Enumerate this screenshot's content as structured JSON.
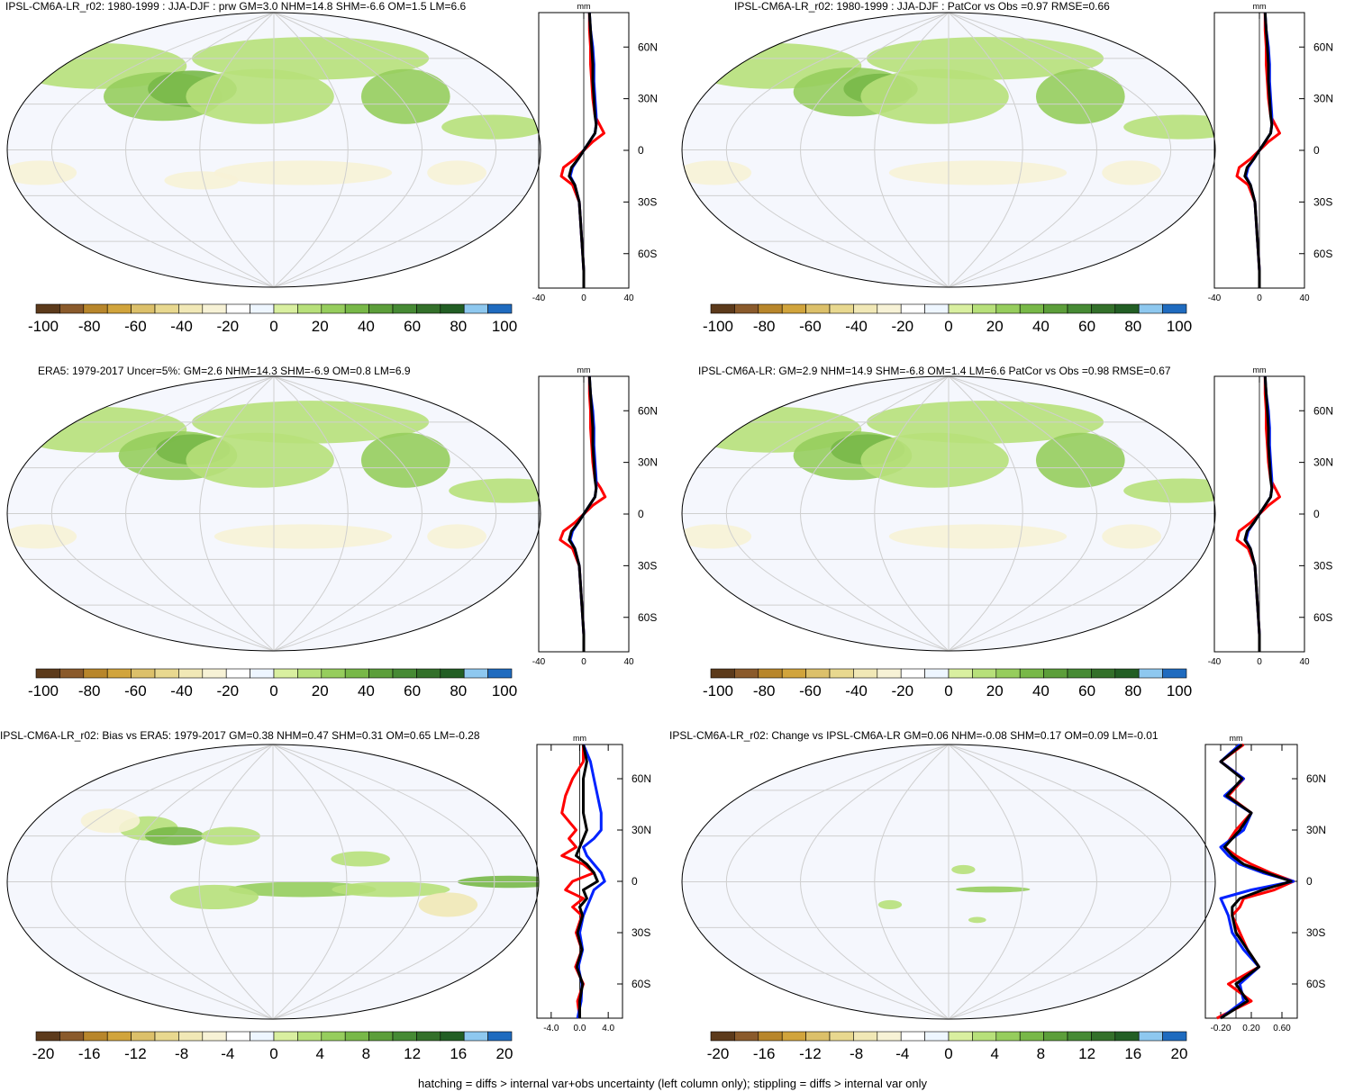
{
  "colors": {
    "land": "none",
    "ocean": "#f5f7fd",
    "graticule": "#cfcfcf",
    "line_red": "#ff0000",
    "line_blue": "#0022ff",
    "line_black": "#000000"
  },
  "colorbar_colors": [
    "#5c3a1b",
    "#8a5a2b",
    "#b8862b",
    "#d1a43c",
    "#dcc06a",
    "#e8d88f",
    "#f1e8b6",
    "#f7f2d6",
    "#ffffff",
    "#eef6ff",
    "#d9efa0",
    "#b7e07a",
    "#96cd5d",
    "#78b848",
    "#5c9e3a",
    "#468a34",
    "#33702a",
    "#225e24",
    "#8ec8ef",
    "#1f6bbf"
  ],
  "panels": [
    {
      "title": "IPSL-CM6A-LR_r02: 1980-1999 : JJA-DJF : prw GM=3.0 NHM=14.8 SHM=-6.6 OM=1.5 LM=6.6",
      "colorbar_labels": [
        "-100",
        "-80",
        "-60",
        "-40",
        "-20",
        "0",
        "20",
        "40",
        "60",
        "80",
        "100"
      ],
      "profile_ticks": [
        "-40",
        "0",
        "40"
      ],
      "profile_unit": "mm",
      "lat_labels": [
        "60N",
        "30N",
        "0",
        "30S",
        "60S"
      ]
    },
    {
      "title": "IPSL-CM6A-LR_r02: 1980-1999 : JJA-DJF : PatCor vs Obs =0.97 RMSE=0.66",
      "colorbar_labels": [
        "-100",
        "-80",
        "-60",
        "-40",
        "-20",
        "0",
        "20",
        "40",
        "60",
        "80",
        "100"
      ],
      "profile_ticks": [
        "-40",
        "0",
        "40"
      ],
      "profile_unit": "mm",
      "lat_labels": [
        "60N",
        "30N",
        "0",
        "30S",
        "60S"
      ]
    },
    {
      "title": "ERA5: 1979-2017 Uncer=5%: GM=2.6 NHM=14.3 SHM=-6.9 OM=0.8 LM=6.9",
      "colorbar_labels": [
        "-100",
        "-80",
        "-60",
        "-40",
        "-20",
        "0",
        "20",
        "40",
        "60",
        "80",
        "100"
      ],
      "profile_ticks": [
        "-40",
        "0",
        "40"
      ],
      "profile_unit": "mm",
      "lat_labels": [
        "60N",
        "30N",
        "0",
        "30S",
        "60S"
      ]
    },
    {
      "title": "IPSL-CM6A-LR: GM=2.9 NHM=14.9 SHM=-6.8 OM=1.4 LM=6.6 PatCor vs Obs =0.98 RMSE=0.67",
      "colorbar_labels": [
        "-100",
        "-80",
        "-60",
        "-40",
        "-20",
        "0",
        "20",
        "40",
        "60",
        "80",
        "100"
      ],
      "profile_ticks": [
        "-40",
        "0",
        "40"
      ],
      "profile_unit": "mm",
      "lat_labels": [
        "60N",
        "30N",
        "0",
        "30S",
        "60S"
      ]
    },
    {
      "title": "IPSL-CM6A-LR_r02: Bias vs ERA5: 1979-2017 GM=0.38 NHM=0.47 SHM=0.31 OM=0.65 LM=-0.28",
      "colorbar_labels": [
        "-20",
        "-16",
        "-12",
        "-8",
        "-4",
        "0",
        "4",
        "8",
        "12",
        "16",
        "20"
      ],
      "profile_ticks": [
        "-4.0",
        "0.0",
        "4.0"
      ],
      "profile_unit": "mm",
      "lat_labels": [
        "60N",
        "30N",
        "0",
        "30S",
        "60S"
      ]
    },
    {
      "title": "IPSL-CM6A-LR_r02: Change vs IPSL-CM6A-LR GM=0.06 NHM=-0.08 SHM=0.17 OM=0.09 LM=-0.01",
      "colorbar_labels": [
        "-20",
        "-16",
        "-12",
        "-8",
        "-4",
        "0",
        "4",
        "8",
        "12",
        "16",
        "20"
      ],
      "profile_ticks": [
        "-0.20",
        "0.20",
        "0.60"
      ],
      "profile_unit": "mm",
      "lat_labels": [
        "60N",
        "30N",
        "0",
        "30S",
        "60S"
      ]
    }
  ],
  "footnote": "hatching = diffs > internal var+obs uncertainty (left column only); stippling = diffs > internal var only",
  "chart_data": [
    {
      "type": "line",
      "title": "IPSL-CM6A-LR_r02: 1980-1999 : JJA-DJF : prw GM=3.0 NHM=14.8 SHM=-6.6 OM=1.5 LM=6.6",
      "xlim": [
        -40,
        40
      ],
      "ylim": [
        -80,
        80
      ],
      "xlabel": "mm",
      "y": [
        -80,
        -70,
        -60,
        -50,
        -40,
        -30,
        -20,
        -15,
        -10,
        -5,
        0,
        5,
        10,
        15,
        20,
        30,
        40,
        50,
        60,
        70,
        80
      ],
      "series": [
        {
          "color": "red",
          "values": [
            0,
            0,
            -1,
            -2,
            -3,
            -4,
            -10,
            -20,
            -18,
            -8,
            0,
            8,
            18,
            14,
            10,
            8,
            7,
            6,
            6,
            5,
            5
          ]
        },
        {
          "color": "blue",
          "values": [
            0,
            0,
            -1,
            -2,
            -3,
            -4,
            -8,
            -12,
            -10,
            -5,
            0,
            5,
            10,
            11,
            11,
            10,
            9,
            9,
            8,
            6,
            5
          ]
        },
        {
          "color": "black",
          "values": [
            0,
            0,
            -1,
            -2,
            -3,
            -4,
            -8,
            -13,
            -11,
            -5,
            0,
            5,
            10,
            11,
            10,
            9,
            8,
            8,
            7,
            6,
            5
          ]
        }
      ]
    },
    {
      "type": "line",
      "title": "IPSL-CM6A-LR_r02: 1980-1999 : JJA-DJF : PatCor vs Obs =0.97 RMSE=0.66",
      "xlim": [
        -40,
        40
      ],
      "ylim": [
        -80,
        80
      ],
      "xlabel": "mm",
      "y": [
        -80,
        -70,
        -60,
        -50,
        -40,
        -30,
        -20,
        -15,
        -10,
        -5,
        0,
        5,
        10,
        15,
        20,
        30,
        40,
        50,
        60,
        70,
        80
      ],
      "series": [
        {
          "color": "red",
          "values": [
            0,
            0,
            -1,
            -2,
            -3,
            -4,
            -10,
            -20,
            -18,
            -8,
            0,
            8,
            18,
            14,
            10,
            8,
            7,
            6,
            6,
            5,
            5
          ]
        },
        {
          "color": "blue",
          "values": [
            0,
            0,
            -1,
            -2,
            -3,
            -4,
            -8,
            -12,
            -10,
            -5,
            0,
            5,
            10,
            11,
            11,
            10,
            9,
            9,
            8,
            6,
            5
          ]
        },
        {
          "color": "black",
          "values": [
            0,
            0,
            -1,
            -2,
            -3,
            -4,
            -8,
            -13,
            -11,
            -5,
            0,
            5,
            10,
            11,
            10,
            9,
            8,
            8,
            7,
            6,
            5
          ]
        }
      ]
    },
    {
      "type": "line",
      "title": "ERA5: 1979-2017 Uncer=5%: GM=2.6 NHM=14.3 SHM=-6.9 OM=0.8 LM=6.9",
      "xlim": [
        -40,
        40
      ],
      "ylim": [
        -80,
        80
      ],
      "xlabel": "mm",
      "y": [
        -80,
        -70,
        -60,
        -50,
        -40,
        -30,
        -20,
        -15,
        -10,
        -5,
        0,
        5,
        10,
        15,
        20,
        30,
        40,
        50,
        60,
        70,
        80
      ],
      "series": [
        {
          "color": "red",
          "values": [
            0,
            0,
            -1,
            -2,
            -3,
            -4,
            -10,
            -21,
            -18,
            -8,
            0,
            8,
            19,
            15,
            10,
            8,
            7,
            6,
            6,
            5,
            5
          ]
        },
        {
          "color": "blue",
          "values": [
            0,
            0,
            -1,
            -2,
            -3,
            -4,
            -8,
            -12,
            -10,
            -5,
            0,
            5,
            10,
            11,
            11,
            10,
            9,
            9,
            8,
            6,
            5
          ]
        },
        {
          "color": "black",
          "values": [
            0,
            0,
            -1,
            -2,
            -3,
            -4,
            -8,
            -13,
            -11,
            -5,
            0,
            5,
            10,
            11,
            10,
            9,
            8,
            8,
            7,
            6,
            5
          ]
        }
      ]
    },
    {
      "type": "line",
      "title": "IPSL-CM6A-LR: GM=2.9 NHM=14.9 SHM=-6.8 OM=1.4 LM=6.6 PatCor vs Obs =0.98 RMSE=0.67",
      "xlim": [
        -40,
        40
      ],
      "ylim": [
        -80,
        80
      ],
      "xlabel": "mm",
      "y": [
        -80,
        -70,
        -60,
        -50,
        -40,
        -30,
        -20,
        -15,
        -10,
        -5,
        0,
        5,
        10,
        15,
        20,
        30,
        40,
        50,
        60,
        70,
        80
      ],
      "series": [
        {
          "color": "red",
          "values": [
            0,
            0,
            -1,
            -2,
            -3,
            -4,
            -10,
            -20,
            -18,
            -8,
            0,
            8,
            18,
            14,
            10,
            8,
            7,
            6,
            6,
            5,
            5
          ]
        },
        {
          "color": "blue",
          "values": [
            0,
            0,
            -1,
            -2,
            -3,
            -4,
            -8,
            -12,
            -10,
            -5,
            0,
            5,
            10,
            11,
            11,
            10,
            9,
            9,
            8,
            6,
            5
          ]
        },
        {
          "color": "black",
          "values": [
            0,
            0,
            -1,
            -2,
            -3,
            -4,
            -8,
            -13,
            -11,
            -5,
            0,
            5,
            10,
            11,
            10,
            9,
            8,
            8,
            7,
            6,
            5
          ]
        }
      ]
    },
    {
      "type": "line",
      "title": "IPSL-CM6A-LR_r02: Bias vs ERA5: 1979-2017 GM=0.38 NHM=0.47 SHM=0.31 OM=0.65 LM=-0.28",
      "xlim": [
        -6,
        6
      ],
      "ylim": [
        -80,
        80
      ],
      "xlabel": "mm",
      "y": [
        -80,
        -70,
        -60,
        -50,
        -40,
        -30,
        -20,
        -15,
        -10,
        -5,
        0,
        5,
        10,
        15,
        20,
        25,
        30,
        40,
        50,
        60,
        70,
        80
      ],
      "series": [
        {
          "color": "red",
          "values": [
            0,
            -0.3,
            0.5,
            -0.6,
            0.3,
            -0.5,
            0.3,
            -1.0,
            0.5,
            -2.0,
            -1.0,
            2.0,
            0.5,
            -2.5,
            -0.5,
            -1.5,
            -0.5,
            -2.5,
            -2.0,
            -1.0,
            0.5,
            0.5
          ]
        },
        {
          "color": "blue",
          "values": [
            -0.3,
            0.2,
            0.3,
            -0.2,
            0.4,
            0.0,
            0.5,
            1.0,
            1.5,
            2.0,
            3.5,
            3.0,
            2.0,
            1.0,
            0.5,
            2.0,
            3.0,
            3.0,
            2.5,
            2.0,
            1.5,
            0.5
          ]
        },
        {
          "color": "black",
          "values": [
            0,
            0.0,
            0.4,
            -0.4,
            0.3,
            -0.3,
            0.4,
            0.0,
            1.0,
            0.5,
            2.5,
            2.0,
            1.0,
            -0.5,
            0.0,
            0.5,
            1.0,
            0.5,
            0.5,
            0.5,
            1.0,
            0.5
          ]
        }
      ]
    },
    {
      "type": "line",
      "title": "IPSL-CM6A-LR_r02: Change vs IPSL-CM6A-LR GM=0.06 NHM=-0.08 SHM=0.17 OM=0.09 LM=-0.01",
      "xlim": [
        -0.4,
        0.8
      ],
      "ylim": [
        -80,
        80
      ],
      "xlabel": "mm",
      "y": [
        -80,
        -70,
        -60,
        -50,
        -40,
        -30,
        -20,
        -15,
        -10,
        -5,
        0,
        5,
        10,
        15,
        20,
        30,
        40,
        50,
        60,
        70,
        80
      ],
      "series": [
        {
          "color": "red",
          "values": [
            -0.25,
            0.2,
            -0.1,
            0.3,
            0.15,
            0.05,
            -0.05,
            0.05,
            0.1,
            0.5,
            0.75,
            0.45,
            0.2,
            0.0,
            -0.15,
            0.0,
            0.2,
            -0.1,
            0.1,
            -0.2,
            0.1
          ]
        },
        {
          "color": "blue",
          "values": [
            -0.2,
            0.1,
            0.05,
            0.3,
            0.1,
            -0.05,
            -0.1,
            -0.15,
            -0.2,
            0.2,
            0.75,
            0.35,
            0.05,
            -0.1,
            -0.2,
            0.1,
            0.2,
            -0.15,
            0.1,
            -0.2,
            0.05
          ]
        },
        {
          "color": "black",
          "values": [
            -0.2,
            0.15,
            0.0,
            0.3,
            0.15,
            0.0,
            -0.05,
            -0.05,
            0.05,
            0.35,
            0.72,
            0.4,
            0.1,
            -0.05,
            -0.15,
            0.05,
            0.2,
            -0.12,
            0.08,
            -0.2,
            0.08
          ]
        }
      ]
    }
  ]
}
